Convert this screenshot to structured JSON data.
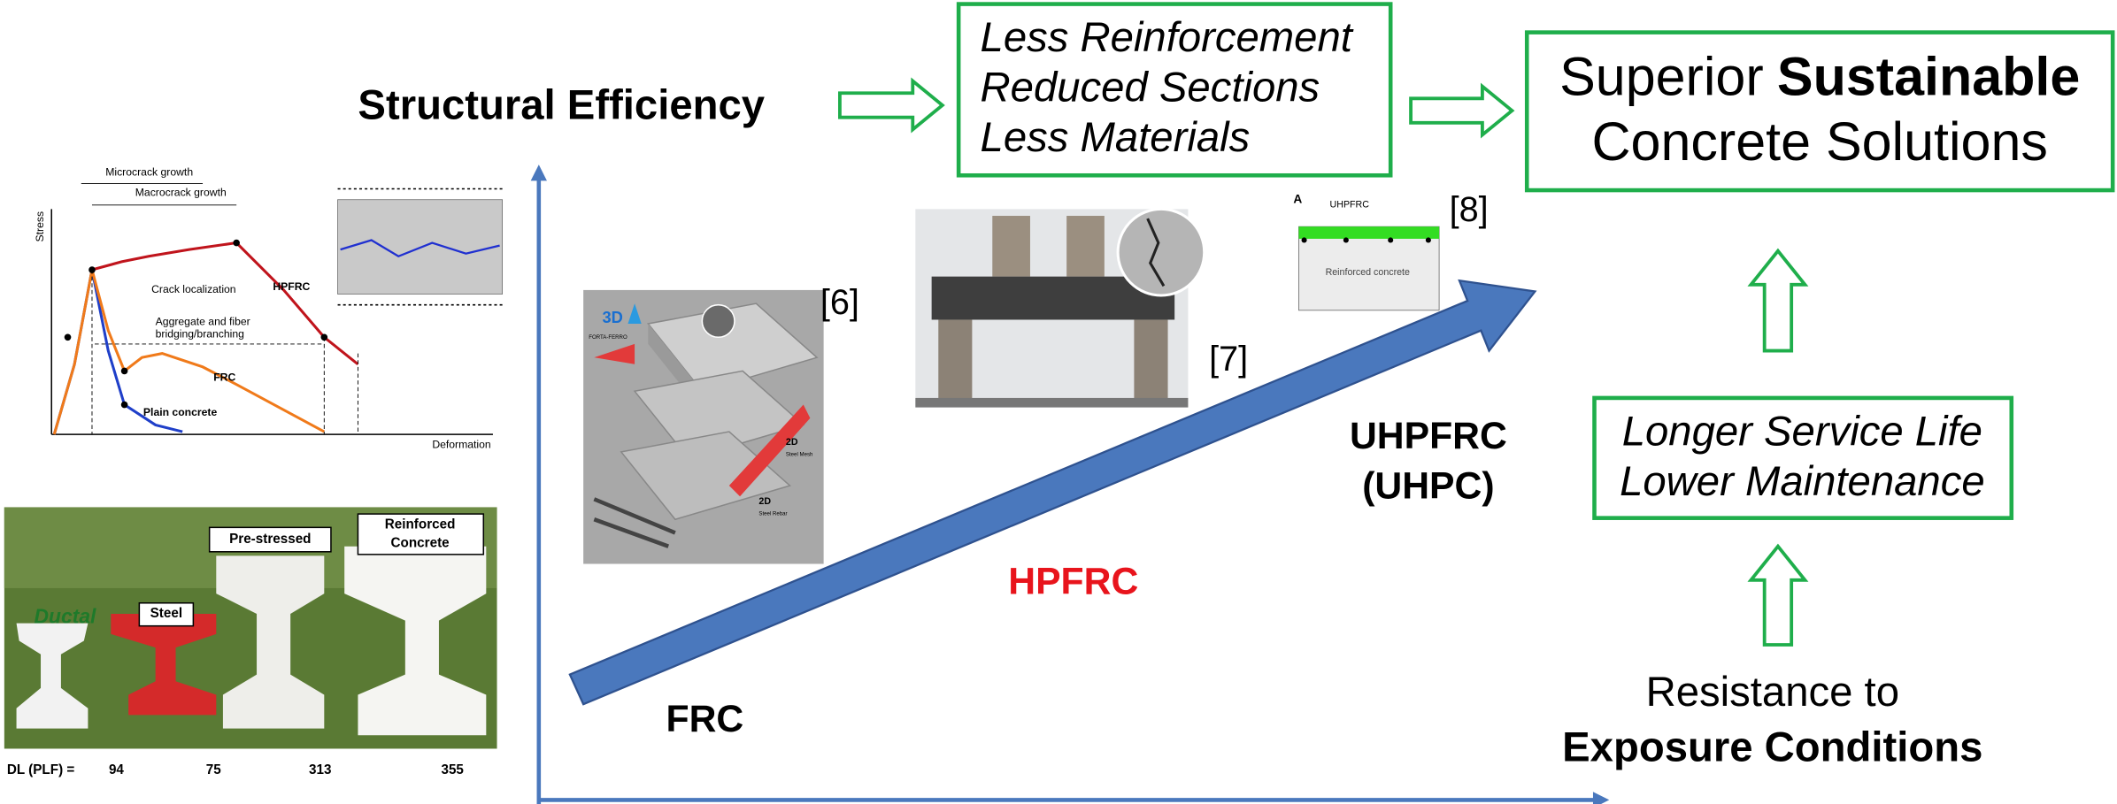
{
  "header": {
    "structural_efficiency": "Structural Efficiency"
  },
  "benefits_box": {
    "lines": [
      "Less Reinforcement",
      "Reduced Sections",
      "Less Materials"
    ]
  },
  "outcome_box": {
    "regular": "Superior",
    "bold": "Sustainable",
    "line2": "Concrete Solutions"
  },
  "durability_box": {
    "lines": [
      "Longer Service Life",
      "Lower Maintenance"
    ]
  },
  "exposure": {
    "line1": "Resistance to",
    "line2": "Exposure Conditions"
  },
  "progression": {
    "frc": "FRC",
    "hpfrc": "HPFRC",
    "uhpfrc": "UHPFRC",
    "uhpc": "(UHPC)"
  },
  "references": [
    "[6]",
    "[7]",
    "[8]"
  ],
  "stress_chart": {
    "y_label": "Stress",
    "x_label": "Deformation",
    "microcrack": "Microcrack growth",
    "macrocrack": "Macrocrack growth",
    "localization": "Crack localization",
    "bridging": [
      "Aggregate and fiber",
      "bridging/branching"
    ],
    "hpfrc": "HPFRC",
    "frc": "FRC",
    "plain": "Plain concrete"
  },
  "beam_photo": {
    "ductal": "Ductal",
    "steel": "Steel",
    "prestressed": "Pre-stressed",
    "reinforced": [
      "Reinforced",
      "Concrete"
    ],
    "dl_label": "DL (PLF)  =",
    "dl_values": [
      94,
      75,
      313,
      355
    ]
  },
  "reinforcement_image": {
    "three_d": "3D",
    "brand": "FORTA-FERRO",
    "mesh": [
      "2D",
      "Steel Mesh"
    ],
    "rebar": [
      "2D",
      "Steel Rebar"
    ]
  },
  "section_schematic": {
    "section": "A",
    "top_layer": "UHPFRC",
    "body": "Reinforced concrete"
  }
}
